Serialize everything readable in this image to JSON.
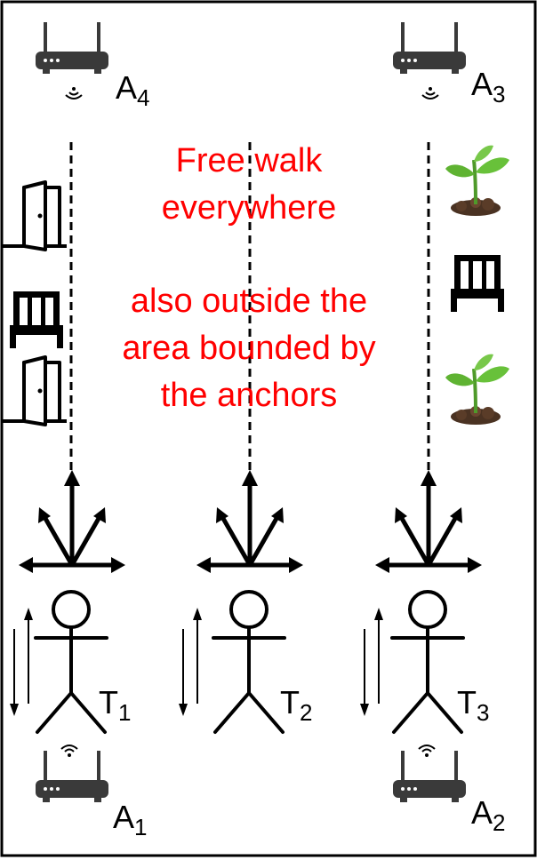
{
  "anchors": [
    {
      "id": "A4",
      "letter": "A",
      "sub": "4"
    },
    {
      "id": "A3",
      "letter": "A",
      "sub": "3"
    },
    {
      "id": "A1",
      "letter": "A",
      "sub": "1"
    },
    {
      "id": "A2",
      "letter": "A",
      "sub": "2"
    }
  ],
  "tags": [
    {
      "id": "T1",
      "letter": "T",
      "sub": "1"
    },
    {
      "id": "T2",
      "letter": "T",
      "sub": "2"
    },
    {
      "id": "T3",
      "letter": "T",
      "sub": "3"
    }
  ],
  "annotation": {
    "line1": "Free walk",
    "line2": "everywhere",
    "line3": "also outside the",
    "line4": "area bounded by",
    "line5": "the anchors"
  },
  "colors": {
    "annotation": "#ff0000",
    "router": "#3a3a3a",
    "stroke": "#000000",
    "plant_leaf": "#5fb332",
    "soil": "#4a3222"
  },
  "icons": [
    "router-icon",
    "wifi-signal-icon",
    "door-icon",
    "chair-icon",
    "plant-icon",
    "stick-figure-icon"
  ]
}
